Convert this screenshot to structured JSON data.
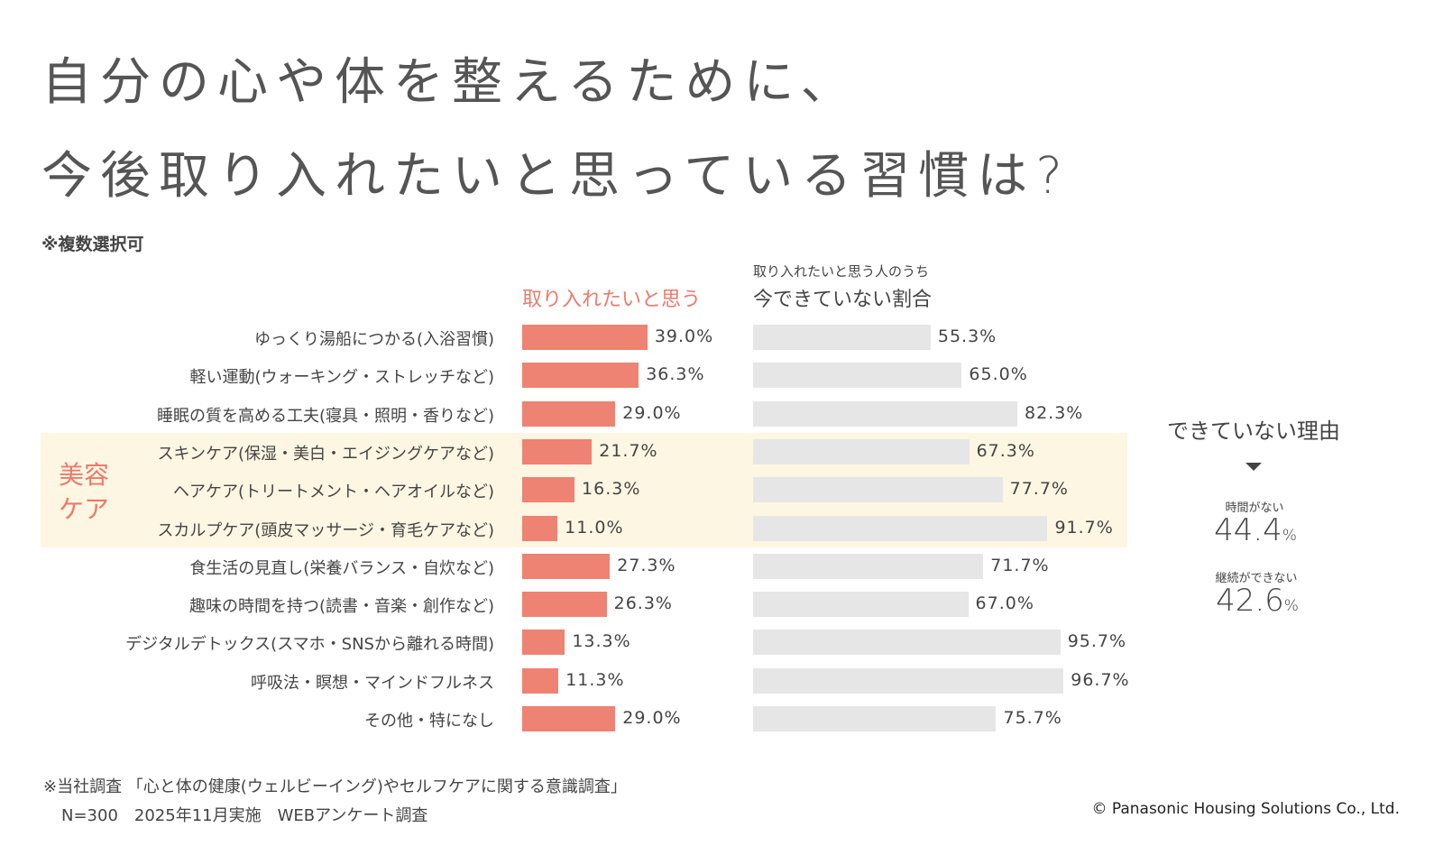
{
  "title_lines": [
    "自分の心や体を整えるために、",
    "今後取り入れたいと思っている習慣は?"
  ],
  "note": "※複数選択可",
  "chart_data": {
    "type": "bar",
    "orientation": "horizontal",
    "title": "自分の心や体を整えるために、今後取り入れたいと思っている習慣は?",
    "categories": [
      "ゆっくり湯船につかる(入浴習慣)",
      "軽い運動(ウォーキング・ストレッチなど)",
      "睡眠の質を高める工夫(寝具・照明・香りなど)",
      "スキンケア(保湿・美白・エイジングケアなど)",
      "ヘアケア(トリートメント・ヘアオイルなど)",
      "スカルプケア(頭皮マッサージ・育毛ケアなど)",
      "食生活の見直し(栄養バランス・自炊など)",
      "趣味の時間を持つ(読書・音楽・創作など)",
      "デジタルデトックス(スマホ・SNSから離れる時間)",
      "呼吸法・瞑想・マインドフルネス",
      "その他・特になし"
    ],
    "series": [
      {
        "name": "取り入れたいと思う",
        "color": "#ee8273",
        "values": [
          39.0,
          36.3,
          29.0,
          21.7,
          16.3,
          11.0,
          27.3,
          26.3,
          13.3,
          11.3,
          29.0
        ]
      },
      {
        "name": "今できていない割合",
        "subtitle": "取り入れたいと思う人のうち",
        "color": "#e6e6e6",
        "values": [
          55.3,
          65.0,
          82.3,
          67.3,
          77.7,
          91.7,
          71.7,
          67.0,
          95.7,
          96.7,
          75.7
        ]
      }
    ],
    "unit": "%",
    "highlight_group": {
      "label": "美容ケア",
      "rows": [
        3,
        4,
        5
      ],
      "color": "#fdf6e2"
    },
    "xlim": [
      0,
      100
    ]
  },
  "reasons": {
    "title": "できていない理由",
    "items": [
      {
        "label": "時間がない",
        "value": "44.4",
        "unit": "%"
      },
      {
        "label": "継続ができない",
        "value": "42.6",
        "unit": "%"
      }
    ]
  },
  "footer": {
    "line1": "※当社調査 「心と体の健康(ウェルビーイング)やセルフケアに関する意識調査」",
    "line2": "N=300　2025年11月実施　WEBアンケート調査",
    "copyright": "© Panasonic Housing Solutions Co., Ltd."
  }
}
